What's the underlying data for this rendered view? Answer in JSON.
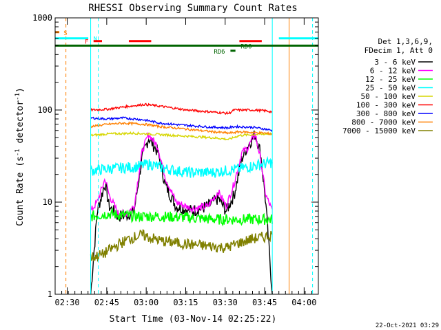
{
  "chart_data": {
    "type": "line",
    "title": "RHESSI Observing Summary Count Rates",
    "xlabel": "Start Time (03-Nov-14 02:25:22)",
    "ylabel": "Count Rate (s⁻¹ detector⁻¹)",
    "y_scale": "log",
    "x_units": "minutes since 02:25:22",
    "xlim": [
      0,
      100
    ],
    "ylim": [
      1,
      1000
    ],
    "x_ticks": [
      {
        "t": 4.6,
        "label": "02:30"
      },
      {
        "t": 19.6,
        "label": "02:45"
      },
      {
        "t": 34.6,
        "label": "03:00"
      },
      {
        "t": 49.6,
        "label": "03:15"
      },
      {
        "t": 64.6,
        "label": "03:30"
      },
      {
        "t": 79.6,
        "label": "03:45"
      },
      {
        "t": 94.6,
        "label": "04:00"
      }
    ],
    "y_ticks": [
      {
        "v": 1,
        "label": "1"
      },
      {
        "v": 10,
        "label": "10"
      },
      {
        "v": 100,
        "label": "100"
      },
      {
        "v": 1000,
        "label": "1000"
      }
    ],
    "legend_header": [
      "Det 1,3,6,9,",
      "FDecim 1, Att 0"
    ],
    "series": [
      {
        "name": "3 - 6 keV",
        "color": "#000000",
        "profile": "low_thermal",
        "t": [
          13.5,
          16,
          19,
          20.5,
          24,
          27,
          30,
          33,
          35.5,
          39,
          42,
          46,
          52,
          58,
          62,
          65,
          68,
          71,
          73,
          76,
          78,
          80,
          82.5
        ],
        "v": [
          1,
          8,
          16,
          9,
          7,
          7.2,
          8,
          30,
          50,
          35,
          15,
          9,
          8,
          9,
          11,
          8,
          12,
          30,
          40,
          55,
          35,
          10,
          1
        ]
      },
      {
        "name": "6 - 12 keV",
        "color": "#ff00ff",
        "profile": "thermal",
        "t": [
          13.5,
          16,
          19,
          20.5,
          24,
          27,
          30,
          33,
          35.5,
          39,
          42,
          46,
          52,
          58,
          62,
          65,
          68,
          71,
          73,
          76,
          78,
          80,
          82.5
        ],
        "v": [
          8,
          10,
          18,
          12,
          7.5,
          7.5,
          9,
          35,
          55,
          40,
          18,
          10,
          8.5,
          9,
          13,
          9,
          16,
          35,
          38,
          55,
          30,
          12,
          8
        ]
      },
      {
        "name": "12 - 25 keV",
        "color": "#00ff00",
        "profile": "noise",
        "t": [
          13.5,
          20,
          30,
          40,
          50,
          60,
          70,
          80,
          82.5
        ],
        "v": [
          7,
          7.5,
          7,
          7,
          6.8,
          6.5,
          6.5,
          6.5,
          6.5
        ]
      },
      {
        "name": "25 - 50 keV",
        "color": "#00ffff",
        "profile": "noise",
        "t": [
          13.5,
          20,
          30,
          36,
          42,
          50,
          60,
          70,
          76,
          82.5
        ],
        "v": [
          22,
          23,
          24,
          26,
          23,
          21,
          21,
          23,
          25,
          27
        ]
      },
      {
        "name": "50 - 100 keV",
        "color": "#d6d600",
        "profile": "flat",
        "t": [
          13.5,
          20,
          30,
          40,
          50,
          60,
          66,
          70,
          80,
          82.5
        ],
        "v": [
          53,
          55,
          56,
          54,
          52,
          50,
          48,
          53,
          55,
          55
        ]
      },
      {
        "name": "100 - 300 keV",
        "color": "#ff0000",
        "profile": "flat",
        "t": [
          13.5,
          20,
          26,
          34,
          40,
          50,
          60,
          66,
          68,
          75,
          80,
          82.5
        ],
        "v": [
          100,
          102,
          108,
          115,
          110,
          100,
          95,
          92,
          100,
          100,
          98,
          95
        ]
      },
      {
        "name": "300 - 800 keV",
        "color": "#0000ff",
        "profile": "flat",
        "t": [
          13.5,
          20,
          26,
          34,
          40,
          50,
          60,
          66,
          68,
          75,
          80,
          82.5
        ],
        "v": [
          82,
          80,
          82,
          78,
          72,
          68,
          65,
          64,
          66,
          65,
          62,
          60
        ]
      },
      {
        "name": "800 - 7000 keV",
        "color": "#ff8000",
        "profile": "flat",
        "t": [
          13.5,
          20,
          26,
          34,
          40,
          50,
          60,
          66,
          70,
          80,
          82.5
        ],
        "v": [
          66,
          70,
          72,
          70,
          66,
          62,
          58,
          56,
          58,
          56,
          55
        ]
      },
      {
        "name": "7000 - 15000 keV",
        "color": "#808000",
        "profile": "noise",
        "t": [
          13.5,
          18,
          22,
          28,
          33,
          40,
          50,
          60,
          65,
          70,
          75,
          80,
          82.5
        ],
        "v": [
          2.5,
          2.7,
          3.2,
          4,
          4.4,
          3.8,
          3.5,
          3.3,
          3.2,
          3.6,
          4,
          4.2,
          4.5
        ]
      }
    ],
    "flags": [
      {
        "label": "S",
        "color": "#ff8000",
        "segments": [
          [
            0,
            1.6
          ]
        ],
        "label_t": 3.2,
        "y": 700
      },
      {
        "label": "N",
        "color": "#00ffff",
        "segments": [
          [
            0,
            12.6
          ],
          [
            85,
            100
          ]
        ],
        "label_t": 14.6,
        "y": 600
      },
      {
        "label": "F",
        "color": "#ff0000",
        "segments": [
          [
            14.6,
            17.8
          ],
          [
            28,
            36.5
          ],
          [
            70,
            78.5
          ]
        ],
        "label_t": 11.3,
        "y": 560
      },
      {
        "label": "RD0",
        "color": "#006400",
        "segments": [
          [
            0,
            100
          ]
        ],
        "label_t": 70.5,
        "y": 500
      },
      {
        "label": "RD6",
        "color": "#006400",
        "segments": [
          [
            66.6,
            68.5
          ]
        ],
        "label_t": 60.3,
        "y": 440
      }
    ],
    "vlines": [
      {
        "t": 4.1,
        "color": "#ff8000",
        "style": "dashed"
      },
      {
        "t": 13.5,
        "color": "#00ffff",
        "style": "solid"
      },
      {
        "t": 16.4,
        "color": "#00ffff",
        "style": "dashed"
      },
      {
        "t": 82.5,
        "color": "#00ffff",
        "style": "solid"
      },
      {
        "t": 88.9,
        "color": "#ff8000",
        "style": "solid"
      },
      {
        "t": 97.8,
        "color": "#00ffff",
        "style": "dashed"
      }
    ],
    "timestamp": "22-Oct-2021 03:29"
  }
}
